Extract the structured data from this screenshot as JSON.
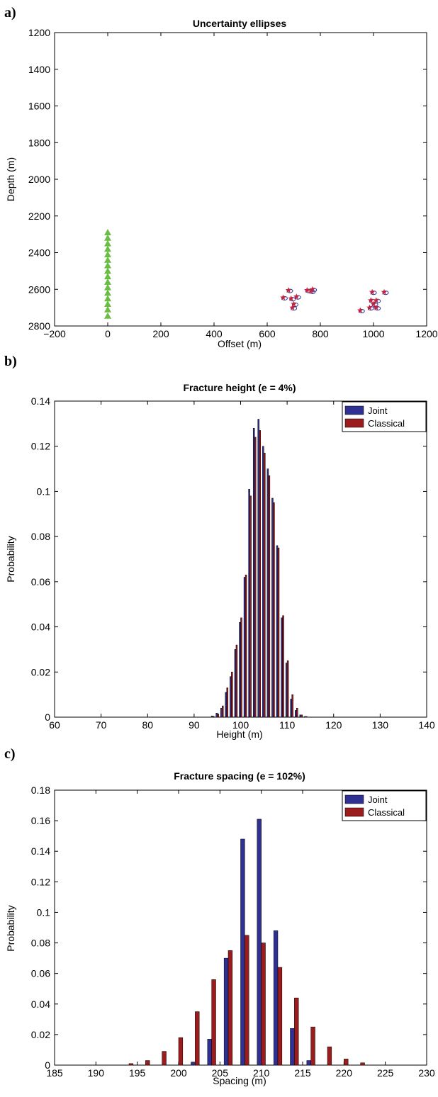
{
  "chart_data": [
    {
      "panel_label": "a)",
      "type": "scatter",
      "title": "Uncertainty ellipses",
      "xlabel": "Offset (m)",
      "ylabel": "Depth (m)",
      "xlim": [
        -200,
        1200
      ],
      "ylim": [
        1200,
        2800
      ],
      "y_reversed": true,
      "xticks": [
        "−200",
        "0",
        "200",
        "400",
        "600",
        "800",
        "1000",
        "1200"
      ],
      "xtick_values": [
        -200,
        0,
        200,
        400,
        600,
        800,
        1000,
        1200
      ],
      "yticks": [
        "1200",
        "1400",
        "1600",
        "1800",
        "2000",
        "2200",
        "2400",
        "2600",
        "2800"
      ],
      "ytick_values": [
        1200,
        1400,
        1600,
        1800,
        2000,
        2200,
        2400,
        2600,
        2800
      ],
      "receivers": {
        "marker": "triangle",
        "color": "#6cbd45",
        "x": [
          0,
          0,
          0,
          0,
          0,
          0,
          0,
          0,
          0,
          0,
          0,
          0,
          0,
          0,
          0,
          0
        ],
        "y": [
          2290,
          2320,
          2350,
          2380,
          2410,
          2440,
          2470,
          2500,
          2530,
          2560,
          2590,
          2620,
          2650,
          2680,
          2710,
          2745
        ]
      },
      "events": {
        "marker": "star",
        "color": "#c8233c",
        "ellipse_color": "#2f3a9e",
        "x": [
          680,
          750,
          770,
          765,
          660,
          690,
          710,
          700,
          695,
          995,
          1040,
          990,
          1010,
          1000,
          1010,
          985,
          950
        ],
        "y": [
          2605,
          2605,
          2600,
          2610,
          2645,
          2650,
          2640,
          2680,
          2700,
          2615,
          2615,
          2660,
          2660,
          2680,
          2700,
          2700,
          2715
        ]
      }
    },
    {
      "panel_label": "b)",
      "type": "bar",
      "title": "Fracture height (e = 4%)",
      "xlabel": "Height (m)",
      "ylabel": "Probability",
      "xlim": [
        60,
        140
      ],
      "ylim": [
        0,
        0.14
      ],
      "xticks": [
        "60",
        "70",
        "80",
        "90",
        "100",
        "110",
        "120",
        "130",
        "140"
      ],
      "xtick_values": [
        60,
        70,
        80,
        90,
        100,
        110,
        120,
        130,
        140
      ],
      "yticks": [
        "0",
        "0.02",
        "0.04",
        "0.06",
        "0.08",
        "0.1",
        "0.12",
        "0.14"
      ],
      "ytick_values": [
        0,
        0.02,
        0.04,
        0.06,
        0.08,
        0.1,
        0.12,
        0.14
      ],
      "bar_width_data": 0.3,
      "x": [
        94,
        95,
        96,
        97,
        98,
        99,
        100,
        101,
        102,
        103,
        104,
        105,
        106,
        107,
        108,
        109,
        110,
        111,
        112,
        113,
        114
      ],
      "series": [
        {
          "name": "Joint",
          "color": "#2e3192",
          "values": [
            0.0005,
            0.0018,
            0.004,
            0.011,
            0.018,
            0.03,
            0.042,
            0.062,
            0.101,
            0.128,
            0.132,
            0.12,
            0.11,
            0.097,
            0.076,
            0.044,
            0.024,
            0.008,
            0.003,
            0.001,
            0.0003
          ]
        },
        {
          "name": "Classical",
          "color": "#9b1c1c",
          "values": [
            0.0004,
            0.0015,
            0.005,
            0.013,
            0.02,
            0.032,
            0.044,
            0.063,
            0.098,
            0.124,
            0.127,
            0.117,
            0.107,
            0.095,
            0.075,
            0.045,
            0.025,
            0.01,
            0.004,
            0.001,
            0.0003
          ]
        }
      ],
      "legend_position": "top-right"
    },
    {
      "panel_label": "c)",
      "type": "bar",
      "title": "Fracture spacing (e = 102%)",
      "xlabel": "Spacing (m)",
      "ylabel": "Probability",
      "xlim": [
        185,
        230
      ],
      "ylim": [
        0,
        0.18
      ],
      "xticks": [
        "185",
        "190",
        "195",
        "200",
        "205",
        "210",
        "215",
        "220",
        "225",
        "230"
      ],
      "xtick_values": [
        185,
        190,
        195,
        200,
        205,
        210,
        215,
        220,
        225,
        230
      ],
      "yticks": [
        "0",
        "0.02",
        "0.04",
        "0.06",
        "0.08",
        "0.1",
        "0.12",
        "0.14",
        "0.16",
        "0.18"
      ],
      "ytick_values": [
        0,
        0.02,
        0.04,
        0.06,
        0.08,
        0.1,
        0.12,
        0.14,
        0.16,
        0.18
      ],
      "bar_width_data": 0.5,
      "x": [
        192,
        194,
        196,
        198,
        200,
        202,
        204,
        206,
        208,
        210,
        212,
        214,
        216,
        218,
        220,
        222,
        224
      ],
      "series": [
        {
          "name": "Joint",
          "color": "#2e3192",
          "values": [
            0,
            0,
            0,
            0,
            0,
            0.002,
            0.017,
            0.07,
            0.148,
            0.161,
            0.088,
            0.024,
            0.003,
            0,
            0,
            0,
            0
          ]
        },
        {
          "name": "Classical",
          "color": "#9b1c1c",
          "values": [
            0,
            0.001,
            0.003,
            0.009,
            0.018,
            0.035,
            0.056,
            0.075,
            0.085,
            0.08,
            0.064,
            0.044,
            0.025,
            0.012,
            0.004,
            0.0015,
            0
          ]
        }
      ],
      "legend_position": "top-right"
    }
  ]
}
